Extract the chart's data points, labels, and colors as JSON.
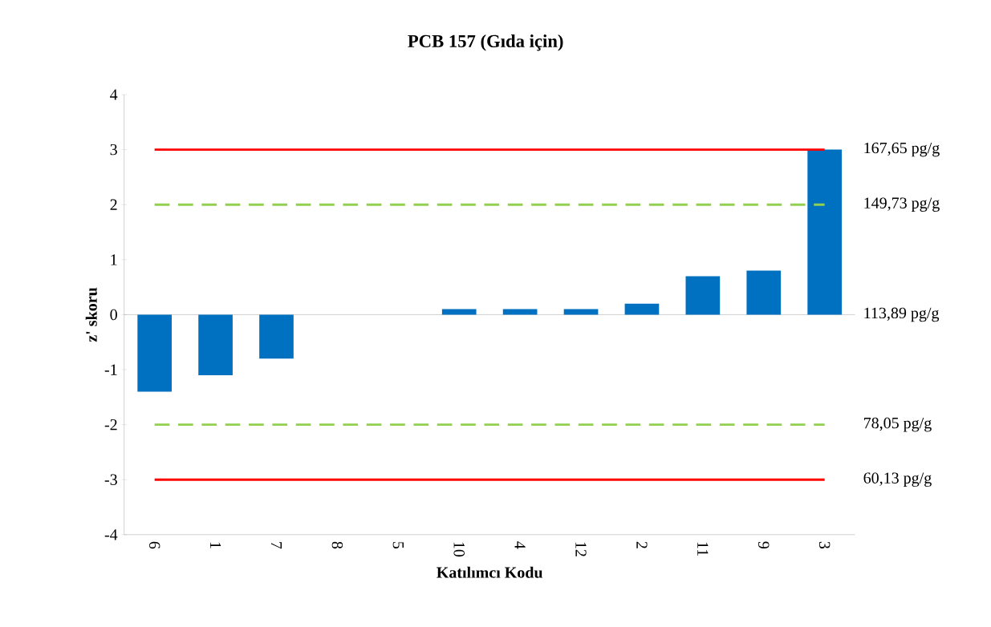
{
  "chart_data": {
    "type": "bar",
    "title": "PCB 157 (Gıda için)",
    "xlabel": "Katılımcı Kodu",
    "ylabel": "z' skoru",
    "categories": [
      "6",
      "1",
      "7",
      "8",
      "5",
      "10",
      "4",
      "12",
      "2",
      "11",
      "9",
      "3"
    ],
    "values": [
      -1.4,
      -1.1,
      -0.8,
      0,
      0,
      0.1,
      0.1,
      0.1,
      0.2,
      0.7,
      0.8,
      3.0
    ],
    "color": "#0070c0",
    "ylim": [
      -4,
      4
    ],
    "yticks": [
      -4,
      -3,
      -2,
      -1,
      0,
      1,
      2,
      3,
      4
    ],
    "annotations": [
      "113,89 pg/g"
    ],
    "ref_lines": [
      {
        "axis": "y",
        "value": 3,
        "label": "167,65 pg/g",
        "color": "#ff0000",
        "line_style": "solid"
      },
      {
        "axis": "y",
        "value": 2,
        "label": "149,73 pg/g",
        "color": "#92d050",
        "line_style": "dashed"
      },
      {
        "axis": "y",
        "value": -2,
        "label": "78,05 pg/g",
        "color": "#92d050",
        "line_style": "dashed"
      },
      {
        "axis": "y",
        "value": -3,
        "label": "60,13 pg/g",
        "color": "#ff0000",
        "line_style": "solid"
      }
    ]
  }
}
